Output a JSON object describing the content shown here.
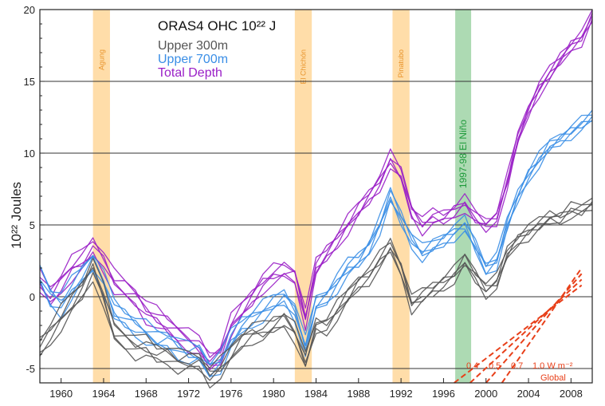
{
  "chart_data": {
    "type": "line",
    "ylabel": "10²² Joules",
    "ylim": [
      -6,
      20
    ],
    "xlim": [
      1958,
      2010
    ],
    "x_ticks": [
      1960,
      1964,
      1968,
      1972,
      1976,
      1980,
      1984,
      1988,
      1992,
      1996,
      2000,
      2004,
      2008
    ],
    "y_ticks": [
      -5,
      0,
      5,
      10,
      15,
      20
    ],
    "grid_lines_y": [
      -5,
      0,
      5,
      10,
      15
    ],
    "legend": {
      "title": "ORAS4  OHC  10²² J",
      "entries": [
        {
          "label": "Upper 300m",
          "color": "#555555"
        },
        {
          "label": "Upper 700m",
          "color": "#3a8ee6"
        },
        {
          "label": "Total Depth",
          "color": "#9a1fc7"
        }
      ],
      "placement": "top-left"
    },
    "events": [
      {
        "label": "Agung",
        "start": 1963.0,
        "end": 1964.6,
        "color": "#ffd79a",
        "text_color": "#e8942c"
      },
      {
        "label": "El Chichón",
        "start": 1982.0,
        "end": 1983.6,
        "color": "#ffd79a",
        "text_color": "#e8942c"
      },
      {
        "label": "Pinatubo",
        "start": 1991.2,
        "end": 1992.8,
        "color": "#ffd79a",
        "text_color": "#e8942c"
      },
      {
        "label": "1997-98 El Niño",
        "start": 1997.1,
        "end": 1998.6,
        "color": "#9fd3a6",
        "text_color": "#1e9a3a"
      }
    ],
    "series": [
      {
        "name": "Total Depth",
        "color": "#9a1fc7",
        "x": [
          1958,
          1959,
          1960,
          1961,
          1962,
          1963,
          1964,
          1965,
          1966,
          1967,
          1968,
          1969,
          1970,
          1971,
          1972,
          1973,
          1974,
          1975,
          1976,
          1977,
          1978,
          1979,
          1980,
          1981,
          1982,
          1983,
          1984,
          1985,
          1986,
          1987,
          1988,
          1989,
          1990,
          1991,
          1992,
          1993,
          1994,
          1995,
          1996,
          1997,
          1998,
          1999,
          2000,
          2001,
          2002,
          2003,
          2004,
          2005,
          2006,
          2007,
          2008,
          2009,
          2010
        ],
        "y": [
          1.0,
          0.0,
          1.0,
          2.0,
          2.5,
          3.5,
          2.5,
          1.0,
          0.5,
          0.0,
          -1.0,
          -1.5,
          -2.0,
          -2.5,
          -3.0,
          -3.5,
          -4.5,
          -4.0,
          -2.0,
          -1.0,
          0.0,
          1.0,
          1.5,
          1.8,
          1.5,
          -1.5,
          2.0,
          3.0,
          4.0,
          5.0,
          6.0,
          7.0,
          8.0,
          9.5,
          8.5,
          6.0,
          5.0,
          5.5,
          5.5,
          6.0,
          6.5,
          5.5,
          5.0,
          5.5,
          8.0,
          11.0,
          13.0,
          14.5,
          15.5,
          16.5,
          17.5,
          18.0,
          19.5
        ]
      },
      {
        "name": "Upper 700m",
        "color": "#3a8ee6",
        "x": [
          1958,
          1959,
          1960,
          1961,
          1962,
          1963,
          1964,
          1965,
          1966,
          1967,
          1968,
          1969,
          1970,
          1971,
          1972,
          1973,
          1974,
          1975,
          1976,
          1977,
          1978,
          1979,
          1980,
          1981,
          1982,
          1983,
          1984,
          1985,
          1986,
          1987,
          1988,
          1989,
          1990,
          1991,
          1992,
          1993,
          1994,
          1995,
          1996,
          1997,
          1998,
          1999,
          2000,
          2001,
          2002,
          2003,
          2004,
          2005,
          2006,
          2007,
          2008,
          2009,
          2010
        ],
        "y": [
          1.5,
          0.0,
          -0.5,
          0.5,
          1.5,
          2.5,
          1.0,
          -1.0,
          -1.5,
          -2.0,
          -2.5,
          -3.0,
          -3.0,
          -3.5,
          -4.0,
          -4.0,
          -5.0,
          -4.5,
          -3.0,
          -2.0,
          -1.5,
          -1.0,
          -0.5,
          0.0,
          -1.0,
          -3.5,
          -0.5,
          0.0,
          1.0,
          2.0,
          2.5,
          3.5,
          5.0,
          7.0,
          5.5,
          4.0,
          3.0,
          3.5,
          4.0,
          4.5,
          5.0,
          3.5,
          2.0,
          2.5,
          5.0,
          7.0,
          8.5,
          9.5,
          10.5,
          11.0,
          11.5,
          12.0,
          12.5
        ]
      },
      {
        "name": "Upper 300m",
        "color": "#555555",
        "x": [
          1958,
          1959,
          1960,
          1961,
          1962,
          1963,
          1964,
          1965,
          1966,
          1967,
          1968,
          1969,
          1970,
          1971,
          1972,
          1973,
          1974,
          1975,
          1976,
          1977,
          1978,
          1979,
          1980,
          1981,
          1982,
          1983,
          1984,
          1985,
          1986,
          1987,
          1988,
          1989,
          1990,
          1991,
          1992,
          1993,
          1994,
          1995,
          1996,
          1997,
          1998,
          1999,
          2000,
          2001,
          2002,
          2003,
          2004,
          2005,
          2006,
          2007,
          2008,
          2009,
          2010
        ],
        "y": [
          -3.5,
          -2.5,
          -1.5,
          -0.5,
          0.5,
          2.0,
          0.0,
          -2.5,
          -3.0,
          -3.5,
          -3.5,
          -4.0,
          -4.0,
          -4.5,
          -4.5,
          -4.5,
          -5.5,
          -5.0,
          -4.0,
          -3.0,
          -2.5,
          -2.5,
          -2.0,
          -1.5,
          -2.5,
          -4.5,
          -2.0,
          -2.0,
          -1.0,
          0.0,
          1.0,
          1.5,
          2.5,
          3.5,
          2.0,
          -0.5,
          0.0,
          0.5,
          1.0,
          1.5,
          2.5,
          1.5,
          0.5,
          1.0,
          3.0,
          4.0,
          4.5,
          5.0,
          5.5,
          5.5,
          6.0,
          6.0,
          6.5
        ]
      }
    ],
    "reference_rates": {
      "labels": [
        "0.4",
        "0.5",
        "0.7",
        "1.0 W m⁻²"
      ],
      "footer": "Global",
      "color": "#e8401a",
      "start_year": 1997,
      "start_value": -6,
      "end_year": 2009,
      "end_values": [
        0.8,
        1.2,
        1.6,
        2.0
      ]
    }
  }
}
